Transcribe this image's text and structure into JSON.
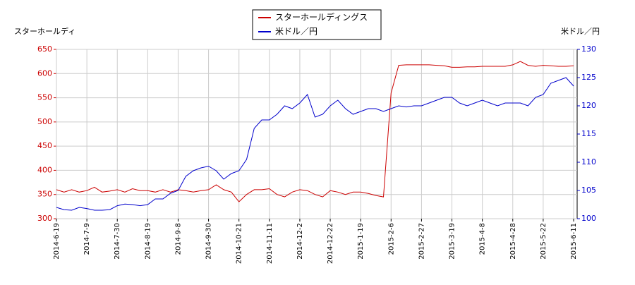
{
  "chart_data": {
    "type": "line",
    "ylabel": "スターホールディ",
    "y2label": "米ドル／円",
    "x": [
      "2014-6-19",
      null,
      null,
      null,
      "2014-7-9",
      null,
      null,
      null,
      "2014-7-30",
      null,
      null,
      null,
      "2014-8-19",
      null,
      null,
      null,
      "2014-9-8",
      null,
      null,
      null,
      "2014-9-30",
      null,
      null,
      null,
      "2014-10-21",
      null,
      null,
      null,
      "2014-11-11",
      null,
      null,
      null,
      "2014-12-2",
      null,
      null,
      null,
      "2014-12-22",
      null,
      null,
      null,
      "2015-1-19",
      null,
      null,
      null,
      "2015-2-6",
      null,
      null,
      null,
      "2015-2-27",
      null,
      null,
      null,
      "2015-3-19",
      null,
      null,
      null,
      "2015-4-8",
      null,
      null,
      null,
      "2015-4-28",
      null,
      null,
      null,
      "2015-5-22",
      null,
      null,
      null,
      "2015-6-11"
    ],
    "series": [
      {
        "name": "スターホールディングス",
        "color": "#cc0000",
        "values": [
          360,
          355,
          360,
          355,
          358,
          365,
          355,
          357,
          360,
          355,
          362,
          358,
          358,
          355,
          360,
          355,
          360,
          358,
          355,
          358,
          360,
          370,
          360,
          355,
          335,
          350,
          360,
          360,
          362,
          350,
          345,
          355,
          360,
          358,
          350,
          345,
          358,
          355,
          350,
          355,
          355,
          352,
          348,
          345,
          560,
          617,
          618,
          618,
          618,
          618,
          617,
          616,
          613,
          613,
          614,
          614,
          615,
          615,
          615,
          615,
          618,
          625,
          617,
          615,
          617,
          616,
          615,
          615,
          616
        ]
      },
      {
        "name": "米ドル／円",
        "color": "#0000cc",
        "axis": "y2",
        "values": [
          102.0,
          101.6,
          101.5,
          102.0,
          101.8,
          101.5,
          101.5,
          101.6,
          102.3,
          102.6,
          102.5,
          102.3,
          102.5,
          103.5,
          103.5,
          104.5,
          105.0,
          107.5,
          108.5,
          109.0,
          109.3,
          108.5,
          107.0,
          108.0,
          108.5,
          110.5,
          116.0,
          117.5,
          117.5,
          118.5,
          120.0,
          119.5,
          120.5,
          122.0,
          118.0,
          118.5,
          120.0,
          121.0,
          119.5,
          118.5,
          119.0,
          119.5,
          119.5,
          119.0,
          119.5,
          120.0,
          119.8,
          120.0,
          120.0,
          120.5,
          121.0,
          121.5,
          121.5,
          120.5,
          120.0,
          120.5,
          121.0,
          120.5,
          120.0,
          120.5,
          120.5,
          120.5,
          120.0,
          121.5,
          122.0,
          124.0,
          124.5,
          125.0,
          123.5
        ]
      }
    ],
    "ylim": [
      300,
      650
    ],
    "yticks": [
      300,
      350,
      400,
      450,
      500,
      550,
      600,
      650
    ],
    "y2lim": [
      100,
      130
    ],
    "y2ticks": [
      100,
      105,
      110,
      115,
      120,
      125,
      130
    ],
    "grid": true,
    "legend": "top"
  }
}
